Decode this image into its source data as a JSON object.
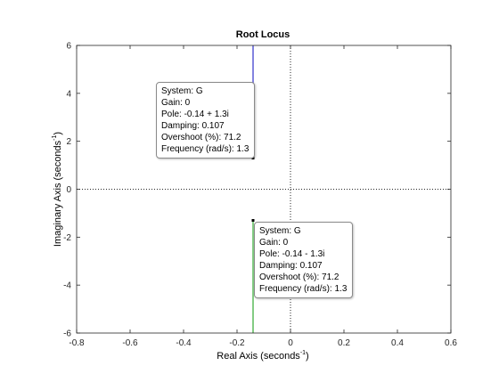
{
  "chart_data": {
    "type": "line",
    "title": "Root Locus",
    "xlabel": "Real Axis (seconds",
    "ylabel": "Imaginary Axis (seconds",
    "label_exponent": "-1",
    "label_close": ")",
    "xlim": [
      -0.8,
      0.6
    ],
    "ylim": [
      -6,
      6
    ],
    "xticks": [
      -0.8,
      -0.6,
      -0.4,
      -0.2,
      0,
      0.2,
      0.4,
      0.6
    ],
    "xtick_labels": [
      "-0.8",
      "-0.6",
      "-0.4",
      "-0.2",
      "0",
      "0.2",
      "0.4",
      "0.6"
    ],
    "yticks": [
      -6,
      -4,
      -2,
      0,
      2,
      4,
      6
    ],
    "ytick_labels": [
      "-6",
      "-4",
      "-2",
      "0",
      "2",
      "4",
      "6"
    ],
    "series": [
      {
        "color": "#3333cc",
        "x": [
          -0.14,
          -0.14
        ],
        "y": [
          1.3,
          6
        ]
      },
      {
        "color": "#33aa33",
        "x": [
          -0.14,
          -0.14
        ],
        "y": [
          -1.3,
          -6
        ]
      }
    ],
    "poles": [
      {
        "x": -0.14,
        "y": 1.3
      },
      {
        "x": -0.14,
        "y": -1.3
      }
    ]
  },
  "datatips": [
    {
      "lines": [
        "System: G",
        "Gain: 0",
        "Pole: -0.14 + 1.3i",
        "Damping: 0.107",
        "Overshoot (%): 71.2",
        "Frequency (rad/s): 1.3"
      ]
    },
    {
      "lines": [
        "System: G",
        "Gain: 0",
        "Pole: -0.14 - 1.3i",
        "Damping: 0.107",
        "Overshoot (%): 71.2",
        "Frequency (rad/s): 1.3"
      ]
    }
  ]
}
